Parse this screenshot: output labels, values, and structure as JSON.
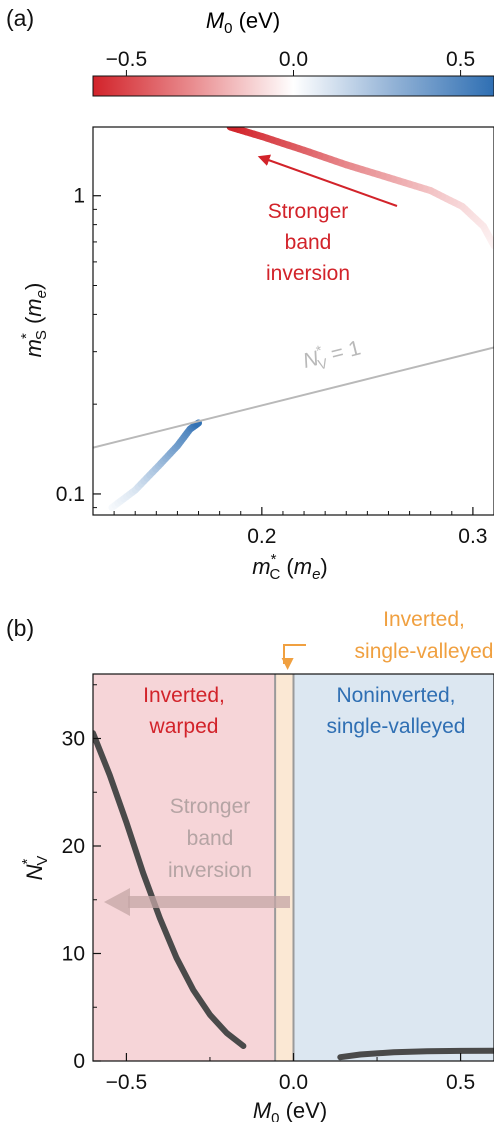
{
  "colors": {
    "red": "#d2232a",
    "blue": "#2f6fb3",
    "orange": "#f0a040",
    "gray": "#b9b9b9",
    "dark": "#4a4a4a",
    "regionRed": "#f6d5d8",
    "regionOrange": "#fbe8d4",
    "regionBlue": "#dce7f1"
  },
  "panel_a": {
    "label": "(a)",
    "colorbar": {
      "label": "M",
      "label_sub": "0",
      "label_unit": " (eV)",
      "range": [
        -0.6,
        0.6
      ],
      "ticks": [
        {
          "v": -0.5,
          "label": "−0.5"
        },
        {
          "v": 0.0,
          "label": "0.0"
        },
        {
          "v": 0.5,
          "label": "0.5"
        }
      ]
    },
    "xlabel": {
      "main": "m",
      "sup": "*",
      "sub": "C",
      "unit_pre": " (",
      "unit": "m",
      "unit_sub": "e",
      "unit_post": ")"
    },
    "ylabel": {
      "main": "m",
      "sup": "*",
      "sub": "S",
      "unit_pre": " (",
      "unit": "m",
      "unit_sub": "e",
      "unit_post": ")"
    },
    "annotation": [
      "Stronger",
      "band",
      "inversion"
    ],
    "nv_line_label": {
      "main": "N",
      "sup": "*",
      "sub": "V",
      "rest": " = 1"
    }
  },
  "panel_b": {
    "label": "(b)",
    "xlabel": {
      "main": "M",
      "sub": "0",
      "unit": " (eV)"
    },
    "ylabel": {
      "main": "N",
      "sup": "*",
      "sub": "V"
    },
    "region_labels": {
      "red": [
        "Inverted,",
        "warped"
      ],
      "blue": [
        "Noninverted,",
        "single-valleyed"
      ],
      "orange": [
        "Inverted,",
        "single-valleyed"
      ]
    },
    "annotation": [
      "Stronger",
      "band",
      "inversion"
    ]
  },
  "chart_data": [
    {
      "type": "line",
      "xscale": "linear",
      "yscale": "log",
      "xlim": [
        0.12,
        0.31
      ],
      "ylim": [
        0.085,
        1.7
      ],
      "xticks": [
        {
          "v": 0.2,
          "label": "0.2"
        },
        {
          "v": 0.3,
          "label": "0.3"
        }
      ],
      "yticks": [
        {
          "v": 0.1,
          "label": "0.1"
        },
        {
          "v": 1,
          "label": "1"
        }
      ],
      "series": [
        {
          "color_by": "M0",
          "points": [
            {
              "x": 0.31,
              "y": 0.68,
              "m0": -0.03
            },
            {
              "x": 0.305,
              "y": 0.79,
              "m0": -0.06
            },
            {
              "x": 0.295,
              "y": 0.92,
              "m0": -0.1
            },
            {
              "x": 0.28,
              "y": 1.04,
              "m0": -0.16
            },
            {
              "x": 0.26,
              "y": 1.15,
              "m0": -0.24
            },
            {
              "x": 0.24,
              "y": 1.27,
              "m0": -0.32
            },
            {
              "x": 0.22,
              "y": 1.42,
              "m0": -0.42
            },
            {
              "x": 0.2,
              "y": 1.58,
              "m0": -0.52
            },
            {
              "x": 0.185,
              "y": 1.7,
              "m0": -0.6
            }
          ]
        },
        {
          "color_by": "M0",
          "points": [
            {
              "x": 0.129,
              "y": 0.09,
              "m0": 0.02
            },
            {
              "x": 0.14,
              "y": 0.103,
              "m0": 0.1
            },
            {
              "x": 0.151,
              "y": 0.124,
              "m0": 0.25
            },
            {
              "x": 0.16,
              "y": 0.145,
              "m0": 0.4
            },
            {
              "x": 0.166,
              "y": 0.165,
              "m0": 0.5
            },
            {
              "x": 0.17,
              "y": 0.173,
              "m0": 0.6
            }
          ]
        },
        {
          "role": "N_V=1",
          "points": [
            {
              "x": 0.12,
              "y": 0.143
            },
            {
              "x": 0.31,
              "y": 0.31
            }
          ]
        }
      ]
    },
    {
      "type": "line",
      "xlim": [
        -0.6,
        0.6
      ],
      "ylim": [
        0,
        36
      ],
      "xticks": [
        {
          "v": -0.5,
          "label": "−0.5"
        },
        {
          "v": 0.0,
          "label": "0.0"
        },
        {
          "v": 0.5,
          "label": "0.5"
        }
      ],
      "yticks": [
        {
          "v": 0,
          "label": "0"
        },
        {
          "v": 10,
          "label": "10"
        },
        {
          "v": 20,
          "label": "20"
        },
        {
          "v": 30,
          "label": "30"
        }
      ],
      "regions": [
        {
          "name": "inverted-warped",
          "x": [
            -0.6,
            -0.055
          ]
        },
        {
          "name": "inverted-single-valleyed",
          "x": [
            -0.055,
            0.0
          ]
        },
        {
          "name": "noninverted-single-valleyed",
          "x": [
            0.0,
            0.6
          ]
        }
      ],
      "series": [
        {
          "points": [
            {
              "x": -0.6,
              "y": 30.5
            },
            {
              "x": -0.55,
              "y": 26.6
            },
            {
              "x": -0.5,
              "y": 22.2
            },
            {
              "x": -0.45,
              "y": 17.5
            },
            {
              "x": -0.4,
              "y": 13.3
            },
            {
              "x": -0.35,
              "y": 9.6
            },
            {
              "x": -0.3,
              "y": 6.6
            },
            {
              "x": -0.25,
              "y": 4.3
            },
            {
              "x": -0.2,
              "y": 2.6
            },
            {
              "x": -0.15,
              "y": 1.4
            }
          ]
        },
        {
          "points": [
            {
              "x": 0.14,
              "y": 0.35
            },
            {
              "x": 0.2,
              "y": 0.6
            },
            {
              "x": 0.3,
              "y": 0.82
            },
            {
              "x": 0.4,
              "y": 0.9
            },
            {
              "x": 0.5,
              "y": 0.94
            },
            {
              "x": 0.6,
              "y": 0.96
            }
          ]
        }
      ]
    }
  ]
}
